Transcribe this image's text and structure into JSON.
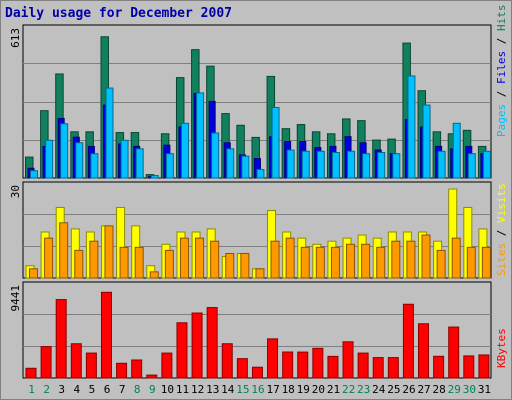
{
  "title": "Daily usage for December 2007",
  "colors": {
    "background": "#c0c0c0",
    "title": "#0000aa",
    "hits": "#11805e",
    "files": "#0000dd",
    "pages": "#00c0ff",
    "visits": "#ffff00",
    "sites": "#ff9900",
    "kbytes": "#ff0000",
    "weekday_label": "#000000",
    "weekend_label": "#00805c"
  },
  "panels": [
    {
      "id": "hits-files-pages",
      "max_label": "613",
      "ymax": 613,
      "right_labels": [
        {
          "text": "Pages",
          "color": "#00c0ff"
        },
        {
          "text": " / ",
          "color": "#000000"
        },
        {
          "text": "Files",
          "color": "#0000dd"
        },
        {
          "text": " / ",
          "color": "#000000"
        },
        {
          "text": "Hits",
          "color": "#11805e"
        }
      ]
    },
    {
      "id": "visits-sites",
      "max_label": "30",
      "ymax": 30,
      "right_labels": [
        {
          "text": "Sites",
          "color": "#ff9900"
        },
        {
          "text": " / ",
          "color": "#000000"
        },
        {
          "text": "Visits",
          "color": "#ffff00"
        }
      ]
    },
    {
      "id": "kbytes",
      "max_label": "9441",
      "ymax": 9441,
      "right_labels": [
        {
          "text": "KBytes",
          "color": "#ff0000"
        }
      ]
    }
  ],
  "chart_data": {
    "type": "bar",
    "title": "Daily usage for December 2007",
    "categories": [
      "1",
      "2",
      "3",
      "4",
      "5",
      "6",
      "7",
      "8",
      "9",
      "10",
      "11",
      "12",
      "13",
      "14",
      "15",
      "16",
      "17",
      "18",
      "19",
      "20",
      "21",
      "22",
      "23",
      "24",
      "25",
      "26",
      "27",
      "28",
      "29",
      "30",
      "31"
    ],
    "weekend_days": [
      "1",
      "2",
      "8",
      "9",
      "15",
      "16",
      "22",
      "23",
      "29",
      "30"
    ],
    "panels": [
      {
        "ylim": [
          0,
          613
        ],
        "series": [
          {
            "name": "Hits",
            "values": [
              86,
              277,
              428,
              190,
              190,
              581,
              187,
              187,
              14,
              182,
              413,
              528,
              460,
              265,
              217,
              167,
              418,
              203,
              220,
              190,
              182,
              243,
              236,
              156,
              160,
              555,
              359,
              190,
              182,
              196,
              130
            ]
          },
          {
            "name": "Files",
            "values": [
              40,
              130,
              245,
              168,
              130,
              300,
              140,
              130,
              7,
              135,
              210,
              348,
              315,
              145,
              95,
              80,
              170,
              150,
              150,
              125,
              130,
              170,
              145,
              115,
              100,
              240,
              210,
              130,
              120,
              130,
              100
            ]
          },
          {
            "name": "Pages",
            "values": [
              30,
              155,
              223,
              145,
              100,
              370,
              155,
              120,
              10,
              100,
              225,
              350,
              185,
              120,
              90,
              35,
              290,
              115,
              110,
              110,
              105,
              110,
              100,
              105,
              100,
              420,
              300,
              110,
              225,
              100,
              110
            ]
          }
        ]
      },
      {
        "ylim": [
          0,
          30
        ],
        "series": [
          {
            "name": "Visits",
            "values": [
              4,
              15,
              23,
              16,
              15,
              17,
              23,
              17,
              4,
              11,
              15,
              15,
              16,
              7,
              8,
              3,
              22,
              15,
              13,
              11,
              12,
              13,
              14,
              13,
              15,
              15,
              15,
              12,
              29,
              23,
              16
            ]
          },
          {
            "name": "Sites",
            "values": [
              3,
              13,
              18,
              9,
              12,
              17,
              10,
              10,
              2,
              9,
              13,
              13,
              12,
              8,
              8,
              3,
              12,
              13,
              10,
              10,
              10,
              11,
              11,
              10,
              12,
              12,
              14,
              9,
              13,
              10,
              10
            ]
          }
        ]
      },
      {
        "ylim": [
          0,
          9441
        ],
        "series": [
          {
            "name": "KBytes",
            "values": [
              998,
              3224,
              8048,
              3516,
              2558,
              8795,
              1510,
              1848,
              300,
              2558,
              5668,
              6668,
              7229,
              3516,
              1988,
              1105,
              4016,
              2668,
              2658,
              3048,
              2221,
              3716,
              2558,
              2095,
              2095,
              7568,
              5568,
              2225,
              5228,
              2268,
              2368
            ]
          }
        ]
      }
    ]
  }
}
